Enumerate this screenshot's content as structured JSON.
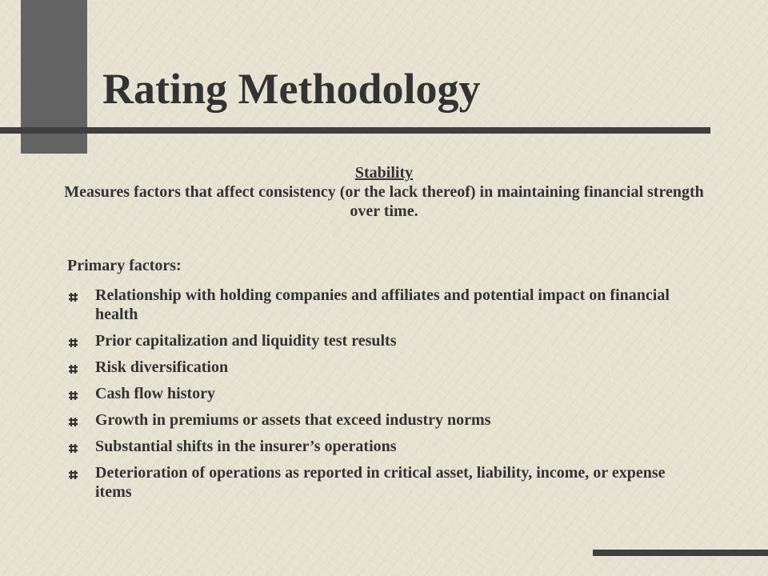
{
  "slide": {
    "title": "Rating Methodology",
    "subheading": "Stability",
    "intro": "Measures factors that affect consistency (or the lack thereof) in maintaining financial strength over time.",
    "factors_heading": "Primary factors:",
    "bullet_icon": "hash-bullet-icon",
    "factors": [
      "Relationship with holding companies and affiliates and potential impact on financial health",
      "Prior capitalization and liquidity test results",
      "Risk diversification",
      "Cash flow history",
      "Growth in premiums or assets that exceed industry norms",
      "Substantial shifts in the insurer’s operations",
      "Deterioration of operations as reported in critical asset, liability, income, or expense items"
    ]
  },
  "colors": {
    "background": "#e6e2d2",
    "text": "#333333",
    "accent_block": "#636363",
    "rule": "#3f3f3f"
  }
}
